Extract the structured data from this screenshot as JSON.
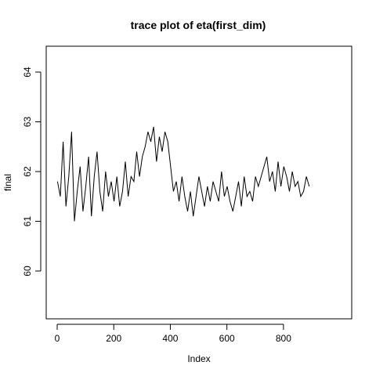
{
  "chart_data": {
    "type": "line",
    "title": "trace plot of eta(first_dim)",
    "xlabel": "Index",
    "ylabel": "final",
    "xlim": [
      0,
      900
    ],
    "ylim": [
      59.3,
      64.3
    ],
    "x_ticks": [
      0,
      200,
      400,
      600,
      800
    ],
    "y_ticks": [
      60,
      61,
      62,
      63,
      64
    ],
    "grid": false,
    "line_color": "#000000",
    "series": [
      {
        "x_start": 1,
        "x_step": 10,
        "values": [
          61.8,
          61.5,
          62.6,
          61.3,
          61.9,
          62.8,
          61.0,
          61.6,
          62.1,
          61.2,
          61.7,
          62.3,
          61.1,
          61.9,
          62.4,
          61.6,
          61.2,
          62.0,
          61.5,
          61.8,
          61.4,
          61.9,
          61.3,
          61.6,
          62.2,
          61.5,
          61.9,
          61.8,
          62.4,
          61.9,
          62.3,
          62.5,
          62.8,
          62.6,
          62.9,
          62.2,
          62.7,
          62.4,
          62.8,
          62.6,
          62.1,
          61.6,
          61.8,
          61.4,
          61.9,
          61.5,
          61.2,
          61.6,
          61.1,
          61.5,
          61.9,
          61.6,
          61.3,
          61.7,
          61.4,
          61.8,
          61.6,
          61.4,
          62.0,
          61.5,
          61.7,
          61.4,
          61.2,
          61.5,
          61.8,
          61.3,
          61.9,
          61.5,
          61.6,
          61.4,
          61.9,
          61.7,
          61.9,
          62.1,
          62.3,
          61.8,
          62.0,
          61.6,
          62.2,
          61.7,
          62.1,
          61.9,
          61.6,
          62.0,
          61.7,
          61.8,
          61.5,
          61.6,
          61.9,
          61.7
        ]
      }
    ]
  }
}
